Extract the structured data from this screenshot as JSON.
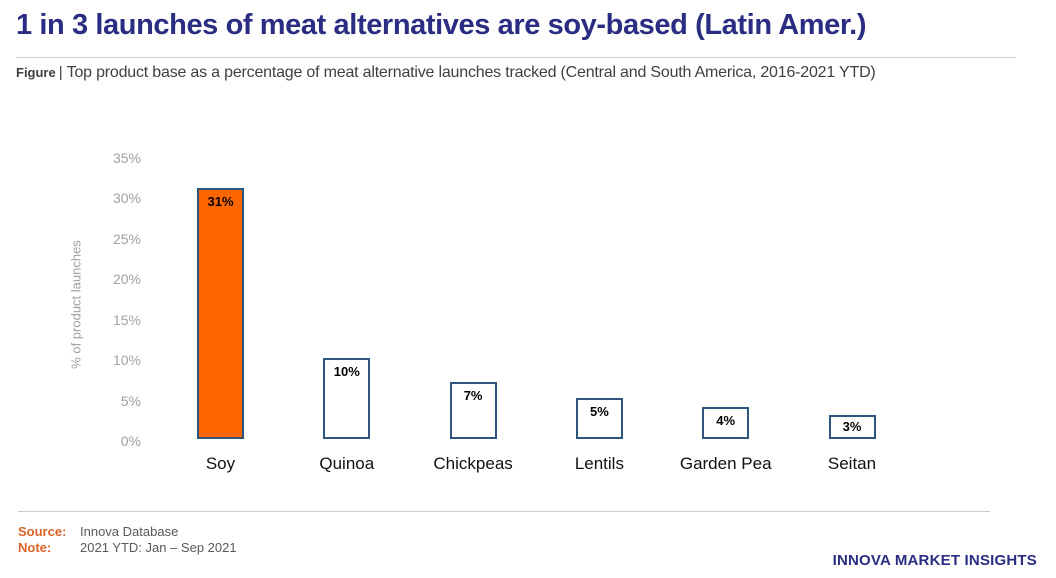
{
  "header": {
    "title": "1 in 3 launches of meat alternatives are soy-based (Latin Amer.)",
    "figure_label": "Figure",
    "figure_separator": "|",
    "figure_caption": "Top product base as a percentage of meat alternative launches tracked (Central and South America, 2016-2021 YTD)"
  },
  "chart_data": {
    "type": "bar",
    "categories": [
      "Soy",
      "Quinoa",
      "Chickpeas",
      "Lentils",
      "Garden Pea",
      "Seitan"
    ],
    "values": [
      31,
      10,
      7,
      5,
      4,
      3
    ],
    "value_labels": [
      "31%",
      "10%",
      "7%",
      "5%",
      "4%",
      "3%"
    ],
    "title": "Top product base as a percentage of meat alternative launches tracked (Central and South America, 2016-2021 YTD)",
    "xlabel": "",
    "ylabel": "% of product launches",
    "ylim": [
      0,
      35
    ],
    "y_tick_values": [
      35,
      30,
      25,
      20,
      15,
      10,
      5,
      0
    ],
    "y_tick_labels": [
      "35%",
      "30%",
      "25%",
      "20%",
      "15%",
      "10%",
      "5%",
      "0%"
    ],
    "grid": false,
    "legend": "none",
    "highlight_index": 0,
    "bar_fill_highlight": "#FF6600",
    "bar_fill_default": "#FFFFFF",
    "bar_border_color": "#2E5480"
  },
  "footer": {
    "source_label": "Source:",
    "source_value": "Innova Database",
    "note_label": "Note:",
    "note_value": "2021 YTD: Jan – Sep 2021",
    "brand": "INNOVA MARKET INSIGHTS"
  },
  "colors": {
    "title_navy": "#2A2D82",
    "accent_orange": "#DD6327",
    "bar_orange": "#FF6600",
    "bar_border": "#2E5480",
    "axis_gray": "#A0A0A0",
    "caption_gray": "#3F3F3F",
    "footer_gray": "#595959",
    "rule_gray": "#CDCDCD"
  }
}
